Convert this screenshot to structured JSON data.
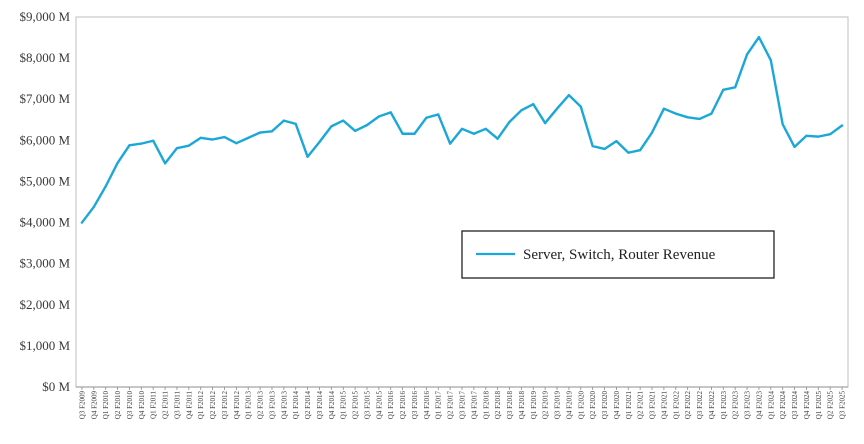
{
  "chart_data": {
    "type": "line",
    "title": "",
    "xlabel": "",
    "ylabel": "",
    "ylim": [
      0,
      9000
    ],
    "y_ticks": [
      "$0 M",
      "$1,000 M",
      "$2,000 M",
      "$3,000 M",
      "$4,000 M",
      "$5,000 M",
      "$6,000 M",
      "$7,000 M",
      "$8,000 M",
      "$9,000 M"
    ],
    "grid": false,
    "legend_position": "center-right",
    "series_color": "#1ba8d8",
    "x": [
      "Q3 F2009",
      "Q4 F2009",
      "Q1 F2010",
      "Q2 F2010",
      "Q3 F2010",
      "Q4 F2010",
      "Q1 F2011",
      "Q2 F2011",
      "Q3 F2011",
      "Q4 F2011",
      "Q1 F2012",
      "Q2 F2012",
      "Q3 F2012",
      "Q4 F2012",
      "Q1 F2013",
      "Q2 F2013",
      "Q3 F2013",
      "Q4 F2013",
      "Q1 F2014",
      "Q2 F2014",
      "Q3 F2014",
      "Q4 F2014",
      "Q1 F2015",
      "Q2 F2015",
      "Q3 F2015",
      "Q4 F2015",
      "Q1 F2016",
      "Q2 F2016",
      "Q3 F2016",
      "Q4 F2016",
      "Q1 F2017",
      "Q2 F2017",
      "Q3 F2017",
      "Q4 F2017",
      "Q1 F2018",
      "Q2 F2018",
      "Q3 F2018",
      "Q4 F2018",
      "Q1 F2019",
      "Q2 F2019",
      "Q3 F2019",
      "Q4 F2019",
      "Q1 F2020",
      "Q2 F2020",
      "Q3 F2020",
      "Q4 F2020",
      "Q1 F2021",
      "Q2 F2021",
      "Q3 F2021",
      "Q4 F2021",
      "Q1 F2022",
      "Q2 F2022",
      "Q3 F2022",
      "Q4 F2022",
      "Q1 F2023",
      "Q2 F2023",
      "Q3 F2023",
      "Q4 F2023",
      "Q1 F2024",
      "Q2 F2024",
      "Q3 F2024",
      "Q4 F2024",
      "Q1 F2025",
      "Q2 F2025",
      "Q3 F2025"
    ],
    "series": [
      {
        "name": "Server, Switch, Router Revenue",
        "values": [
          4000,
          4380,
          4880,
          5450,
          5880,
          5920,
          5990,
          5440,
          5810,
          5870,
          6060,
          6020,
          6080,
          5930,
          6060,
          6190,
          6220,
          6480,
          6400,
          5600,
          5960,
          6340,
          6480,
          6230,
          6370,
          6580,
          6680,
          6160,
          6160,
          6550,
          6630,
          5920,
          6280,
          6160,
          6280,
          6040,
          6450,
          6730,
          6880,
          6420,
          6770,
          7100,
          6820,
          5860,
          5790,
          5980,
          5700,
          5760,
          6190,
          6770,
          6650,
          6560,
          6520,
          6650,
          7230,
          7290,
          8090,
          8510,
          7950,
          6390,
          5840,
          6110,
          6090,
          6150,
          6360
        ]
      }
    ]
  }
}
